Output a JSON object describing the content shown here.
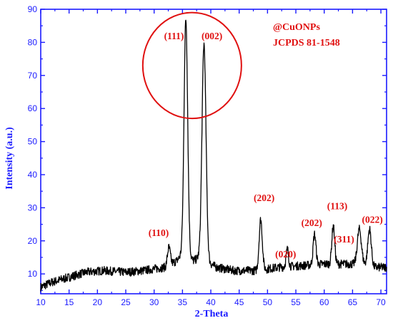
{
  "chart_data": {
    "type": "line",
    "xlabel": "2-Theta",
    "ylabel": "Intensity (a.u.)",
    "xlim": [
      10,
      71
    ],
    "ylim": [
      4,
      90
    ],
    "xticks": [
      10,
      15,
      20,
      25,
      30,
      35,
      40,
      45,
      50,
      55,
      60,
      65,
      70
    ],
    "yticks": [
      10,
      20,
      30,
      40,
      50,
      60,
      70,
      80,
      90
    ],
    "legend": [
      "@CuONPs",
      "JCPDS 81-1548"
    ],
    "colors": {
      "axis": "#1a1aff",
      "line": "#000000",
      "annotation": "#e01010"
    },
    "baseline": [
      {
        "x": 10,
        "y": 6
      },
      {
        "x": 12,
        "y": 7.5
      },
      {
        "x": 15,
        "y": 9
      },
      {
        "x": 18,
        "y": 10.5
      },
      {
        "x": 21,
        "y": 11
      },
      {
        "x": 25,
        "y": 10.5
      },
      {
        "x": 28,
        "y": 11
      },
      {
        "x": 30,
        "y": 11.5
      },
      {
        "x": 32,
        "y": 12
      },
      {
        "x": 34,
        "y": 14
      },
      {
        "x": 35,
        "y": 16
      },
      {
        "x": 37,
        "y": 14
      },
      {
        "x": 38,
        "y": 15
      },
      {
        "x": 41,
        "y": 12
      },
      {
        "x": 44,
        "y": 11
      },
      {
        "x": 48,
        "y": 11
      },
      {
        "x": 52,
        "y": 12
      },
      {
        "x": 56,
        "y": 12.5
      },
      {
        "x": 60,
        "y": 13
      },
      {
        "x": 64,
        "y": 13
      },
      {
        "x": 67,
        "y": 13
      },
      {
        "x": 69,
        "y": 12
      },
      {
        "x": 71,
        "y": 12
      }
    ],
    "peaks": [
      {
        "label": "(110)",
        "x": 32.6,
        "y": 18,
        "label_x": 30.8,
        "label_y": 21.5
      },
      {
        "label": "(111)",
        "x": 35.6,
        "y": 87,
        "label_x": 33.5,
        "label_y": 81
      },
      {
        "label": "(002)",
        "x": 38.8,
        "y": 79.5,
        "label_x": 40.2,
        "label_y": 81
      },
      {
        "label": "(202)",
        "x": 48.8,
        "y": 26.5,
        "label_x": 49.4,
        "label_y": 32
      },
      {
        "label": "(020)",
        "x": 53.5,
        "y": 17.5,
        "label_x": 53.2,
        "label_y": 15
      },
      {
        "label": "(202)",
        "x": 58.3,
        "y": 22,
        "label_x": 57.8,
        "label_y": 24.5
      },
      {
        "label": "(113)",
        "x": 61.6,
        "y": 24.5,
        "label_x": 62.3,
        "label_y": 29.5
      },
      {
        "label": "(311)",
        "x": 66.2,
        "y": 23.5,
        "label_x": 63.5,
        "label_y": 19.5
      },
      {
        "label": "(022)",
        "x": 68.0,
        "y": 23.5,
        "label_x": 68.5,
        "label_y": 25.5
      }
    ],
    "highlight_circle": {
      "center_x": 36.7,
      "center_y": 73,
      "radius_x": 8.7,
      "radius_y": 16
    }
  }
}
